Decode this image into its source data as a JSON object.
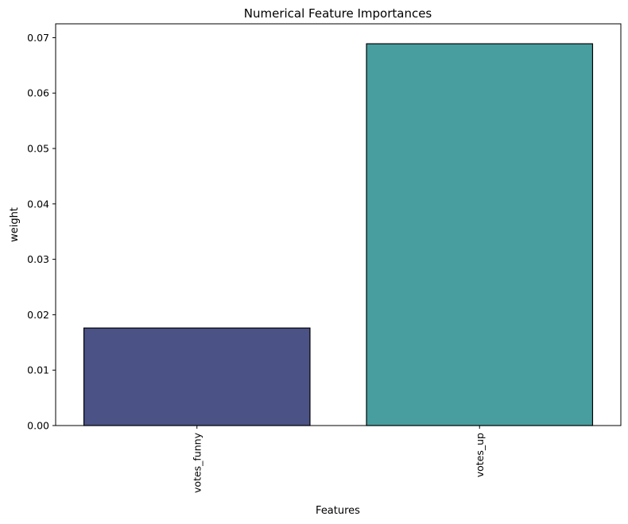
{
  "chart_data": {
    "type": "bar",
    "title": "Numerical Feature Importances",
    "xlabel": "Features",
    "ylabel": "weight",
    "categories": [
      "votes_funny",
      "votes_up"
    ],
    "values": [
      0.0176,
      0.0689
    ],
    "ylim": [
      0,
      0.0725
    ],
    "yticks": [
      0.0,
      0.01,
      0.02,
      0.03,
      0.04,
      0.05,
      0.06,
      0.07
    ],
    "ytick_labels": [
      "0.00",
      "0.01",
      "0.02",
      "0.03",
      "0.04",
      "0.05",
      "0.06",
      "0.07"
    ],
    "bar_colors": [
      "#4a5286",
      "#489e9e"
    ],
    "edge_color": "#000000",
    "grid": false,
    "xtick_rotation": "vertical"
  }
}
